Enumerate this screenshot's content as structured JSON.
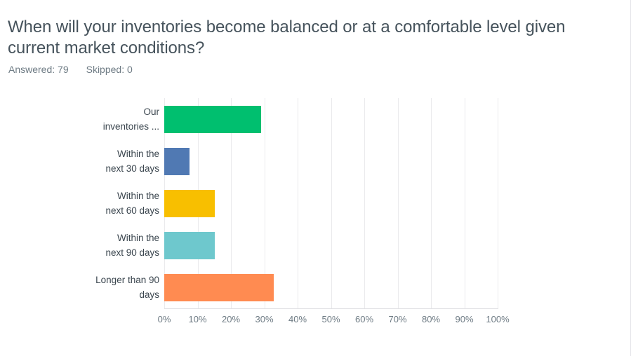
{
  "header": {
    "title": "When will your inventories become balanced or at a comfortable level given current market conditions?",
    "answered_label": "Answered: 79",
    "skipped_label": "Skipped: 0"
  },
  "colors": {
    "title_text": "#46535c",
    "meta_text": "#6e7b84",
    "category_text": "#3a454e",
    "tick_text": "#6e7b84",
    "gridline": "#eaeaec",
    "card_border": "#e4e4e8"
  },
  "chart_data": {
    "type": "bar",
    "orientation": "horizontal",
    "title": "When will your inventories become balanced or at a comfortable level given current market conditions?",
    "answered": 79,
    "skipped": 0,
    "categories": [
      "Our inventories ...",
      "Within the next 30 days",
      "Within the next 60 days",
      "Within the next 90 days",
      "Longer than 90 days"
    ],
    "categories_display_lines": [
      [
        "Our",
        "inventories ..."
      ],
      [
        "Within the",
        "next 30 days"
      ],
      [
        "Within the",
        "next 60 days"
      ],
      [
        "Within the",
        "next 90 days"
      ],
      [
        "Longer than 90",
        "days"
      ]
    ],
    "values": [
      29.11,
      7.59,
      15.19,
      15.19,
      32.91
    ],
    "bar_colors": [
      "#00bf6f",
      "#5079b3",
      "#f8bf00",
      "#6ec8cd",
      "#ff8b51"
    ],
    "x_ticks": [
      "0%",
      "10%",
      "20%",
      "30%",
      "40%",
      "50%",
      "60%",
      "70%",
      "80%",
      "90%",
      "100%"
    ],
    "xlim": [
      0,
      100
    ],
    "grid": "vertical",
    "legend": "none"
  }
}
